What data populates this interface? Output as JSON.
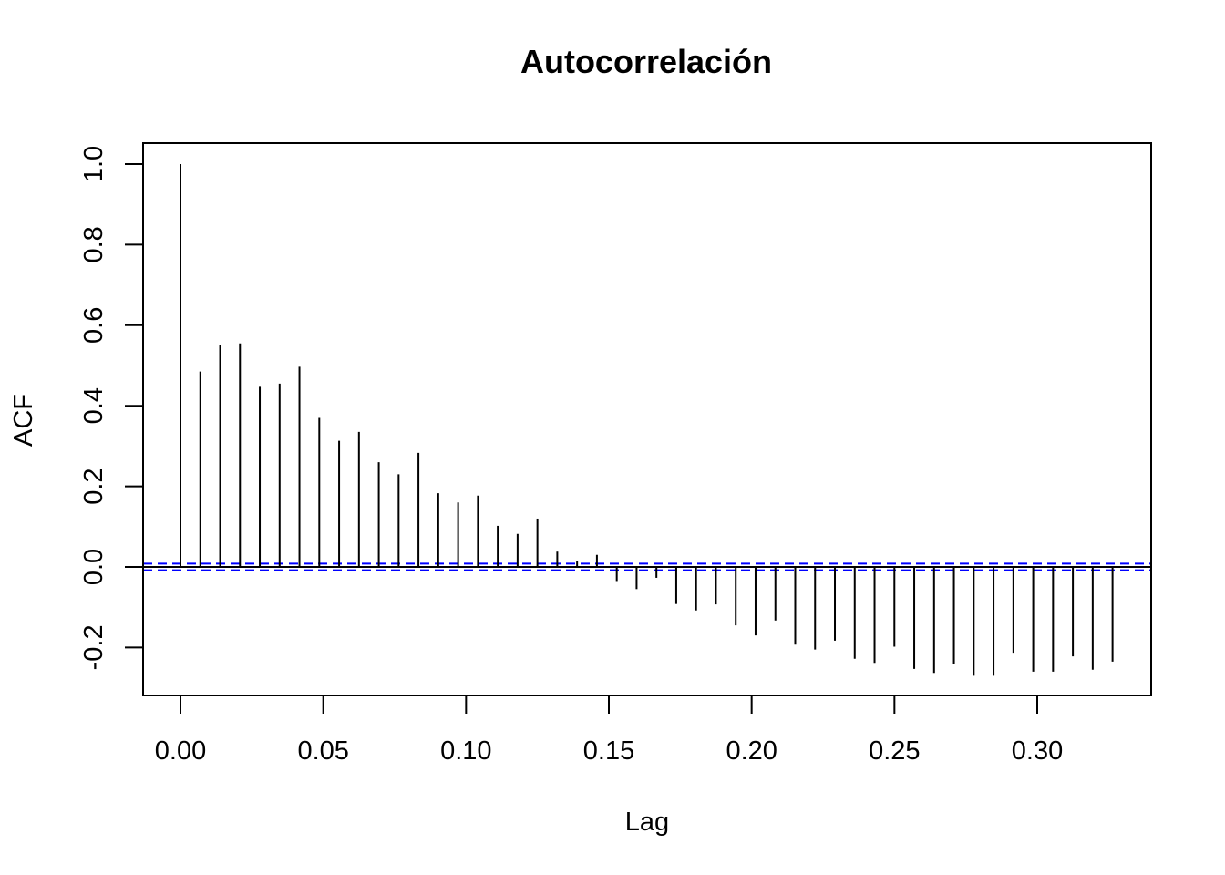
{
  "chart_data": {
    "type": "bar",
    "title": "Autocorrelación",
    "xlabel": "Lag",
    "ylabel": "ACF",
    "xlim": [
      -0.013,
      0.34
    ],
    "ylim": [
      -0.32,
      1.05
    ],
    "x_ticks": [
      "0.00",
      "0.05",
      "0.10",
      "0.15",
      "0.20",
      "0.25",
      "0.30"
    ],
    "y_ticks": [
      "-0.2",
      "0.0",
      "0.2",
      "0.4",
      "0.6",
      "0.8",
      "1.0"
    ],
    "x_tick_values": [
      0.0,
      0.05,
      0.1,
      0.15,
      0.2,
      0.25,
      0.3
    ],
    "y_tick_values": [
      -0.2,
      0.0,
      0.2,
      0.4,
      0.6,
      0.8,
      1.0
    ],
    "grid": false,
    "lag_step": 0.006944,
    "lags": [
      0.0,
      0.0069,
      0.0139,
      0.0208,
      0.0278,
      0.0347,
      0.0417,
      0.0486,
      0.0556,
      0.0625,
      0.0694,
      0.0764,
      0.0833,
      0.0903,
      0.0972,
      0.1042,
      0.1111,
      0.1181,
      0.125,
      0.1319,
      0.1389,
      0.1458,
      0.1528,
      0.1597,
      0.1667,
      0.1736,
      0.1806,
      0.1875,
      0.1944,
      0.2014,
      0.2083,
      0.2153,
      0.2222,
      0.2292,
      0.2361,
      0.2431,
      0.25,
      0.2569,
      0.2639,
      0.2708,
      0.2778,
      0.2847,
      0.2917,
      0.2986,
      0.3056,
      0.3125,
      0.3194,
      0.3264
    ],
    "acf": [
      1.0,
      0.485,
      0.55,
      0.555,
      0.447,
      0.455,
      0.497,
      0.37,
      0.313,
      0.335,
      0.26,
      0.23,
      0.283,
      0.183,
      0.16,
      0.177,
      0.102,
      0.082,
      0.12,
      0.038,
      0.015,
      0.03,
      -0.035,
      -0.055,
      -0.027,
      -0.092,
      -0.108,
      -0.093,
      -0.145,
      -0.17,
      -0.133,
      -0.193,
      -0.205,
      -0.183,
      -0.228,
      -0.238,
      -0.198,
      -0.253,
      -0.263,
      -0.24,
      -0.27,
      -0.27,
      -0.213,
      -0.26,
      -0.26,
      -0.222,
      -0.255,
      -0.235
    ],
    "confidence_bound": 0.0082,
    "confidence_color": "#0000ff",
    "bar_color": "#000000"
  }
}
